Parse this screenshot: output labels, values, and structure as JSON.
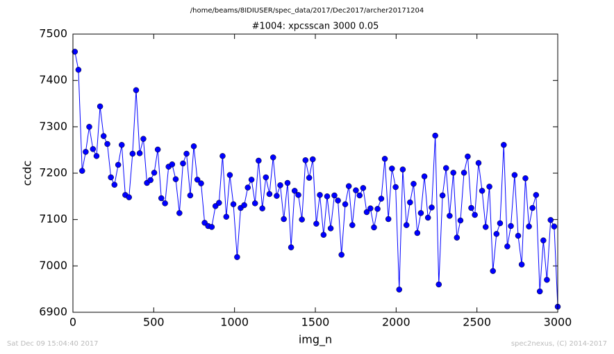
{
  "chart_data": {
    "type": "line",
    "suptitle": "/home/beams/8IDIUSER/spec_data/2017/Dec2017/archer20171204",
    "title": "#1004: xpcsscan 3000 0.05",
    "xlabel": "img_n",
    "ylabel": "ccdc",
    "color": "#0000ff",
    "marker": "o",
    "grid": false,
    "xlim": [
      0,
      3000
    ],
    "xticks": [
      0,
      500,
      1000,
      1500,
      2000,
      2500,
      3000
    ],
    "ylim": [
      6900,
      7500
    ],
    "yticks": [
      6900,
      7000,
      7100,
      7200,
      7300,
      7400,
      7500
    ],
    "x": [
      12,
      34,
      57,
      79,
      101,
      124,
      146,
      168,
      190,
      213,
      235,
      257,
      280,
      302,
      324,
      347,
      369,
      391,
      413,
      436,
      458,
      480,
      503,
      525,
      547,
      570,
      592,
      614,
      636,
      659,
      681,
      703,
      726,
      748,
      770,
      793,
      815,
      837,
      859,
      882,
      904,
      926,
      949,
      971,
      993,
      1016,
      1038,
      1060,
      1082,
      1105,
      1127,
      1149,
      1172,
      1194,
      1216,
      1239,
      1261,
      1283,
      1305,
      1328,
      1350,
      1372,
      1395,
      1417,
      1439,
      1462,
      1484,
      1506,
      1528,
      1551,
      1573,
      1595,
      1618,
      1640,
      1662,
      1685,
      1707,
      1729,
      1751,
      1774,
      1796,
      1818,
      1841,
      1863,
      1885,
      1908,
      1930,
      1952,
      1974,
      1997,
      2019,
      2041,
      2064,
      2086,
      2108,
      2131,
      2153,
      2175,
      2197,
      2220,
      2242,
      2264,
      2287,
      2309,
      2331,
      2354,
      2376,
      2398,
      2420,
      2443,
      2465,
      2487,
      2510,
      2532,
      2554,
      2577,
      2599,
      2621,
      2643,
      2666,
      2688,
      2710,
      2733,
      2755,
      2777,
      2800,
      2822,
      2844,
      2866,
      2889,
      2911,
      2933,
      2956,
      2978,
      3000
    ],
    "values": [
      7462,
      7423,
      7205,
      7246,
      7300,
      7252,
      7237,
      7344,
      7280,
      7263,
      7191,
      7175,
      7218,
      7261,
      7153,
      7148,
      7242,
      7379,
      7243,
      7274,
      7179,
      7185,
      7201,
      7251,
      7146,
      7135,
      7214,
      7219,
      7187,
      7114,
      7221,
      7242,
      7152,
      7258,
      7186,
      7178,
      7093,
      7086,
      7084,
      7129,
      7136,
      7237,
      7106,
      7196,
      7133,
      7019,
      7125,
      7131,
      7169,
      7186,
      7135,
      7227,
      7124,
      7191,
      7155,
      7234,
      7151,
      7174,
      7101,
      7179,
      7040,
      7162,
      7153,
      7100,
      7228,
      7190,
      7230,
      7091,
      7153,
      7067,
      7150,
      7081,
      7152,
      7141,
      7024,
      7133,
      7172,
      7088,
      7163,
      7152,
      7168,
      7116,
      7124,
      7083,
      7123,
      7145,
      7231,
      7101,
      7210,
      7170,
      6949,
      7208,
      7088,
      7137,
      7177,
      7071,
      7114,
      7193,
      7104,
      7126,
      7281,
      6960,
      7152,
      7211,
      7108,
      7201,
      7061,
      7098,
      7201,
      7236,
      7125,
      7110,
      7222,
      7162,
      7084,
      7171,
      6989,
      7069,
      7092,
      7261,
      7042,
      7086,
      7196,
      7065,
      7003,
      7189,
      7085,
      7125,
      7153,
      6945,
      7055,
      6970,
      7099,
      7085,
      6912
    ]
  },
  "footer": {
    "left": "Sat Dec 09 15:04:40 2017",
    "right": "spec2nexus, (C) 2014-2017"
  }
}
